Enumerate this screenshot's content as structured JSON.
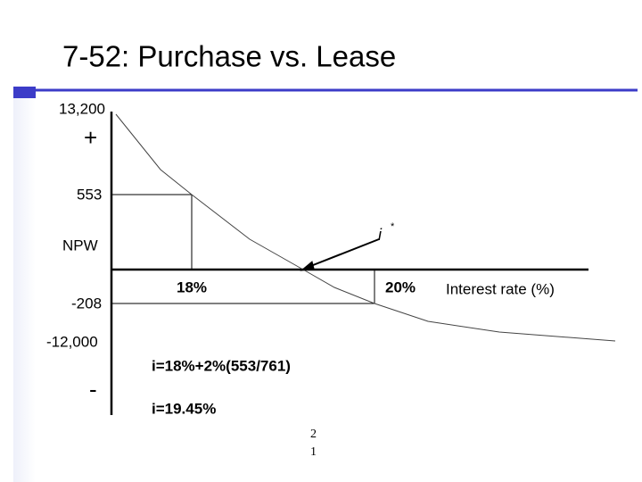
{
  "header": {
    "title": "7-52:  Purchase vs. Lease"
  },
  "graph": {
    "y_labels": {
      "top": "13,200",
      "plus": "+",
      "breakeven": "553",
      "axis": "NPW",
      "low": "-208",
      "bottom": "-12,000",
      "minus": "-"
    },
    "x_labels": {
      "rate_a": "18%",
      "rate_b": "20%",
      "axis": "Interest rate (%)"
    },
    "irr_symbol": "i",
    "irr_star": "*"
  },
  "notes": [
    "i=18%+2%(553/761)",
    "i=19.45%"
  ],
  "page_number": [
    "2",
    "1"
  ]
}
